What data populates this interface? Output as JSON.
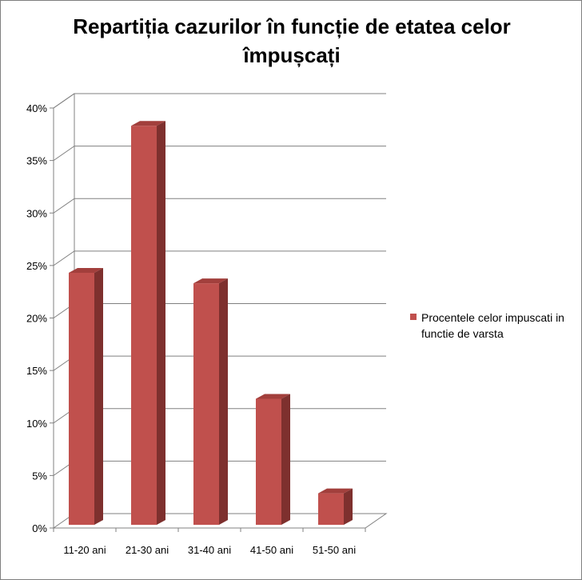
{
  "chart_data": {
    "type": "bar",
    "title": "Repartiția cazurilor în funcție de etatea celor împușcați",
    "xlabel": "",
    "ylabel": "",
    "categories": [
      "11-20 ani",
      "21-30 ani",
      "31-40 ani",
      "41-50 ani",
      "51-50 ani"
    ],
    "series": [
      {
        "name": "Procentele celor impuscati in functie de varsta",
        "values": [
          24,
          38,
          23,
          12,
          3
        ],
        "color": "#c0504d"
      }
    ],
    "ylim": [
      0,
      40
    ],
    "y_ticks": [
      "0%",
      "5%",
      "10%",
      "15%",
      "20%",
      "25%",
      "30%",
      "35%",
      "40%"
    ],
    "grid": true,
    "style": "3d-column",
    "legend_position": "right"
  }
}
